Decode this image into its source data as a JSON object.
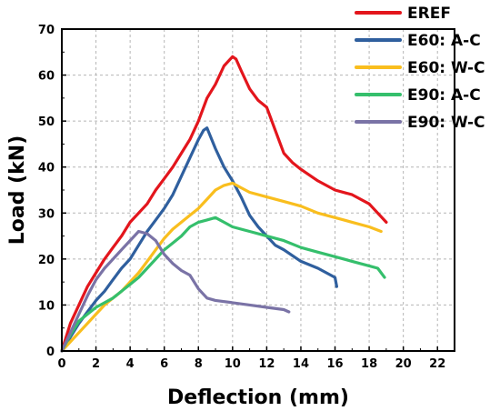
{
  "chart_data": {
    "type": "line",
    "xlabel": "Deflection (mm)",
    "ylabel": "Load (kN)",
    "xlim": [
      0,
      23
    ],
    "ylim": [
      0,
      70
    ],
    "xticks": [
      "0",
      "2",
      "4",
      "6",
      "8",
      "10",
      "12",
      "14",
      "16",
      "18",
      "20",
      "22"
    ],
    "yticks": [
      "0",
      "10",
      "20",
      "30",
      "40",
      "50",
      "60",
      "70"
    ],
    "grid": true,
    "legend_position": "top-right",
    "series": [
      {
        "name": "EREF",
        "color": "#e3151c",
        "x": [
          0,
          0.5,
          1,
          1.5,
          2,
          2.5,
          3,
          3.5,
          4,
          4.5,
          5,
          5.5,
          6,
          6.5,
          7,
          7.5,
          8,
          8.5,
          9,
          9.5,
          10,
          10.2,
          10.5,
          11,
          11.5,
          12,
          12.5,
          13,
          13.5,
          14,
          15,
          16,
          17,
          18,
          18.5,
          19
        ],
        "y": [
          0,
          6,
          10,
          14,
          17,
          20,
          22.5,
          25,
          28,
          30,
          32,
          35,
          37.5,
          40,
          43,
          46,
          50,
          55,
          58,
          62,
          64,
          63.5,
          61,
          57,
          54.5,
          53,
          48,
          43,
          41,
          39.5,
          37,
          35,
          34,
          32,
          30,
          28
        ]
      },
      {
        "name": "E60: A-C",
        "color": "#2f5f9e",
        "x": [
          0,
          0.5,
          1,
          1.5,
          2,
          2.5,
          3,
          3.5,
          4,
          4.5,
          5,
          5.5,
          6,
          6.5,
          7,
          7.5,
          8,
          8.3,
          8.5,
          9,
          9.5,
          10,
          10.5,
          11,
          11.5,
          12,
          12.5,
          13,
          14,
          15,
          16,
          16.1
        ],
        "y": [
          0,
          3,
          6,
          8.5,
          11,
          13,
          15.5,
          18,
          20,
          23,
          26,
          28.5,
          31,
          34,
          38,
          42,
          46,
          48,
          48.5,
          44,
          40,
          37,
          33.5,
          29.5,
          27,
          25,
          23,
          22,
          19.5,
          18,
          16,
          14
        ]
      },
      {
        "name": "E60: W-C",
        "color": "#f9be1e",
        "x": [
          0,
          0.5,
          1,
          1.5,
          2,
          2.5,
          3,
          3.5,
          4,
          4.5,
          5,
          5.5,
          6,
          6.5,
          7,
          7.5,
          8,
          8.5,
          9,
          9.5,
          10,
          10.5,
          11,
          12,
          13,
          14,
          15,
          16,
          17,
          18,
          18.7
        ],
        "y": [
          0,
          2,
          4,
          6,
          8,
          10,
          11.5,
          13,
          15,
          17,
          19.5,
          22,
          24.5,
          26.5,
          28,
          29.5,
          31,
          33,
          35,
          36,
          36.5,
          35.5,
          34.5,
          33.5,
          32.5,
          31.5,
          30,
          29,
          28,
          27,
          26
        ]
      },
      {
        "name": "E90: A-C",
        "color": "#35bf6c",
        "x": [
          0,
          0.5,
          1,
          1.5,
          2,
          2.5,
          3,
          3.5,
          4,
          4.5,
          5,
          5.5,
          6,
          6.5,
          7,
          7.5,
          8,
          8.5,
          9,
          9.5,
          10,
          11,
          12,
          13,
          14,
          15,
          16,
          17,
          18,
          18.5,
          18.9
        ],
        "y": [
          0,
          3.5,
          6.5,
          8,
          9.5,
          10.5,
          11.5,
          13,
          14.5,
          16,
          18,
          20,
          22,
          23.5,
          25,
          27,
          28,
          28.5,
          29,
          28,
          27,
          26,
          25,
          24,
          22.5,
          21.5,
          20.5,
          19.5,
          18.5,
          18,
          16
        ]
      },
      {
        "name": "E90: W-C",
        "color": "#7a73a6",
        "x": [
          0,
          0.5,
          1,
          1.5,
          2,
          2.5,
          3,
          3.5,
          4,
          4.5,
          5,
          5.5,
          6,
          6.5,
          7,
          7.5,
          8,
          8.5,
          9,
          10,
          11,
          12,
          13,
          13.3
        ],
        "y": [
          0,
          4,
          8,
          12,
          15.5,
          18,
          20,
          22,
          24,
          26,
          25.5,
          24,
          21,
          19,
          17.5,
          16.5,
          13.5,
          11.5,
          11,
          10.5,
          10,
          9.5,
          9,
          8.5
        ]
      }
    ]
  }
}
